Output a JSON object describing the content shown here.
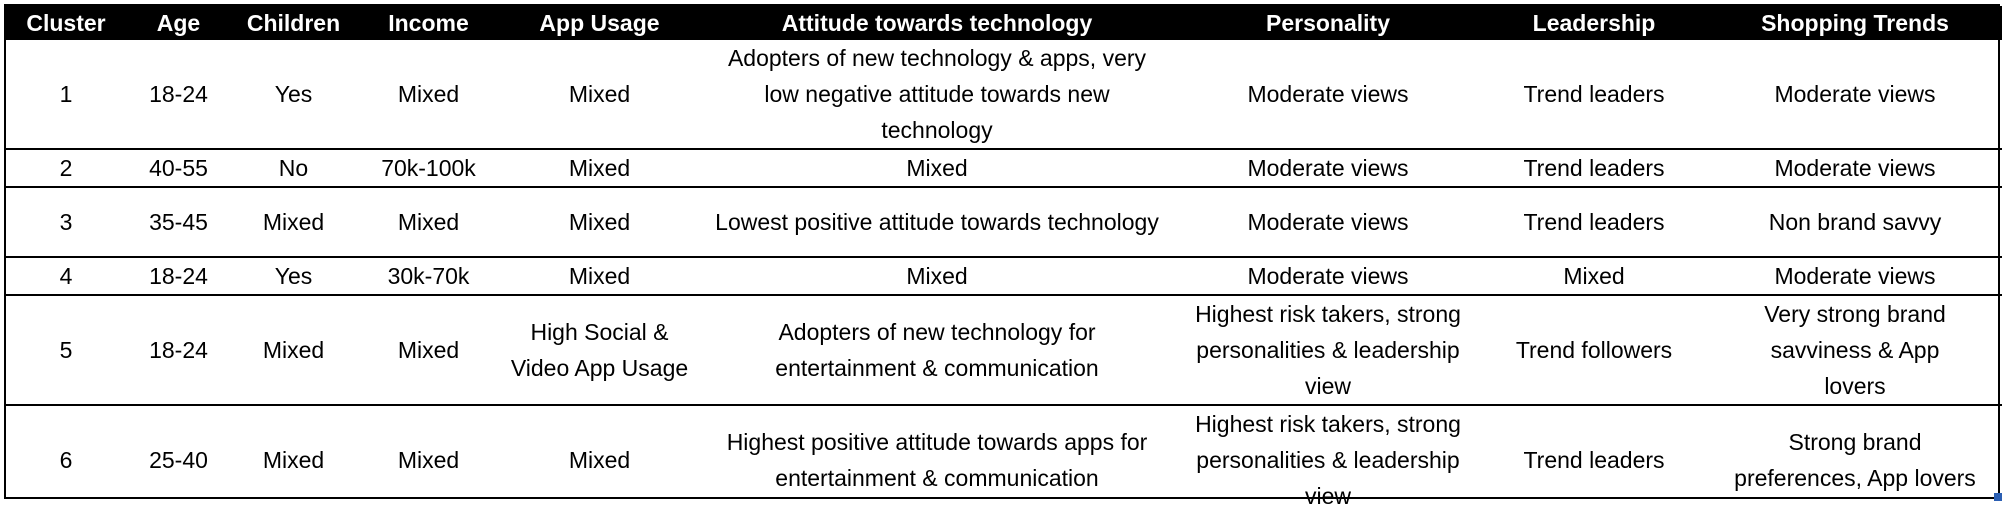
{
  "table": {
    "headers": [
      "Cluster",
      "Age",
      "Children",
      "Income",
      "App Usage",
      "Attitude towards technology",
      "Personality",
      "Leadership",
      "Shopping Trends"
    ],
    "rows": [
      [
        "1",
        "18-24",
        "Yes",
        "Mixed",
        "Mixed",
        "Adopters of new technology & apps, very low negative attitude towards new technology",
        "Moderate views",
        "Trend leaders",
        "Moderate views"
      ],
      [
        "2",
        "40-55",
        "No",
        "70k-100k",
        "Mixed",
        "Mixed",
        "Moderate views",
        "Trend leaders",
        "Moderate views"
      ],
      [
        "3",
        "35-45",
        "Mixed",
        "Mixed",
        "Mixed",
        "Lowest positive attitude towards technology",
        "Moderate views",
        "Trend leaders",
        "Non brand savvy"
      ],
      [
        "4",
        "18-24",
        "Yes",
        "30k-70k",
        "Mixed",
        "Mixed",
        "Moderate views",
        "Mixed",
        "Moderate views"
      ],
      [
        "5",
        "18-24",
        "Mixed",
        "Mixed",
        "High Social & Video App Usage",
        "Adopters of new technology for entertainment & communication",
        "Highest risk takers, strong personalities & leadership view",
        "Trend followers",
        "Very strong brand savviness & App lovers"
      ],
      [
        "6",
        "25-40",
        "Mixed",
        "Mixed",
        "Mixed",
        "Highest positive attitude towards apps for entertainment & communication",
        "Highest risk takers, strong personalities & leadership view",
        "Trend leaders",
        "Strong brand preferences, App lovers"
      ]
    ]
  }
}
